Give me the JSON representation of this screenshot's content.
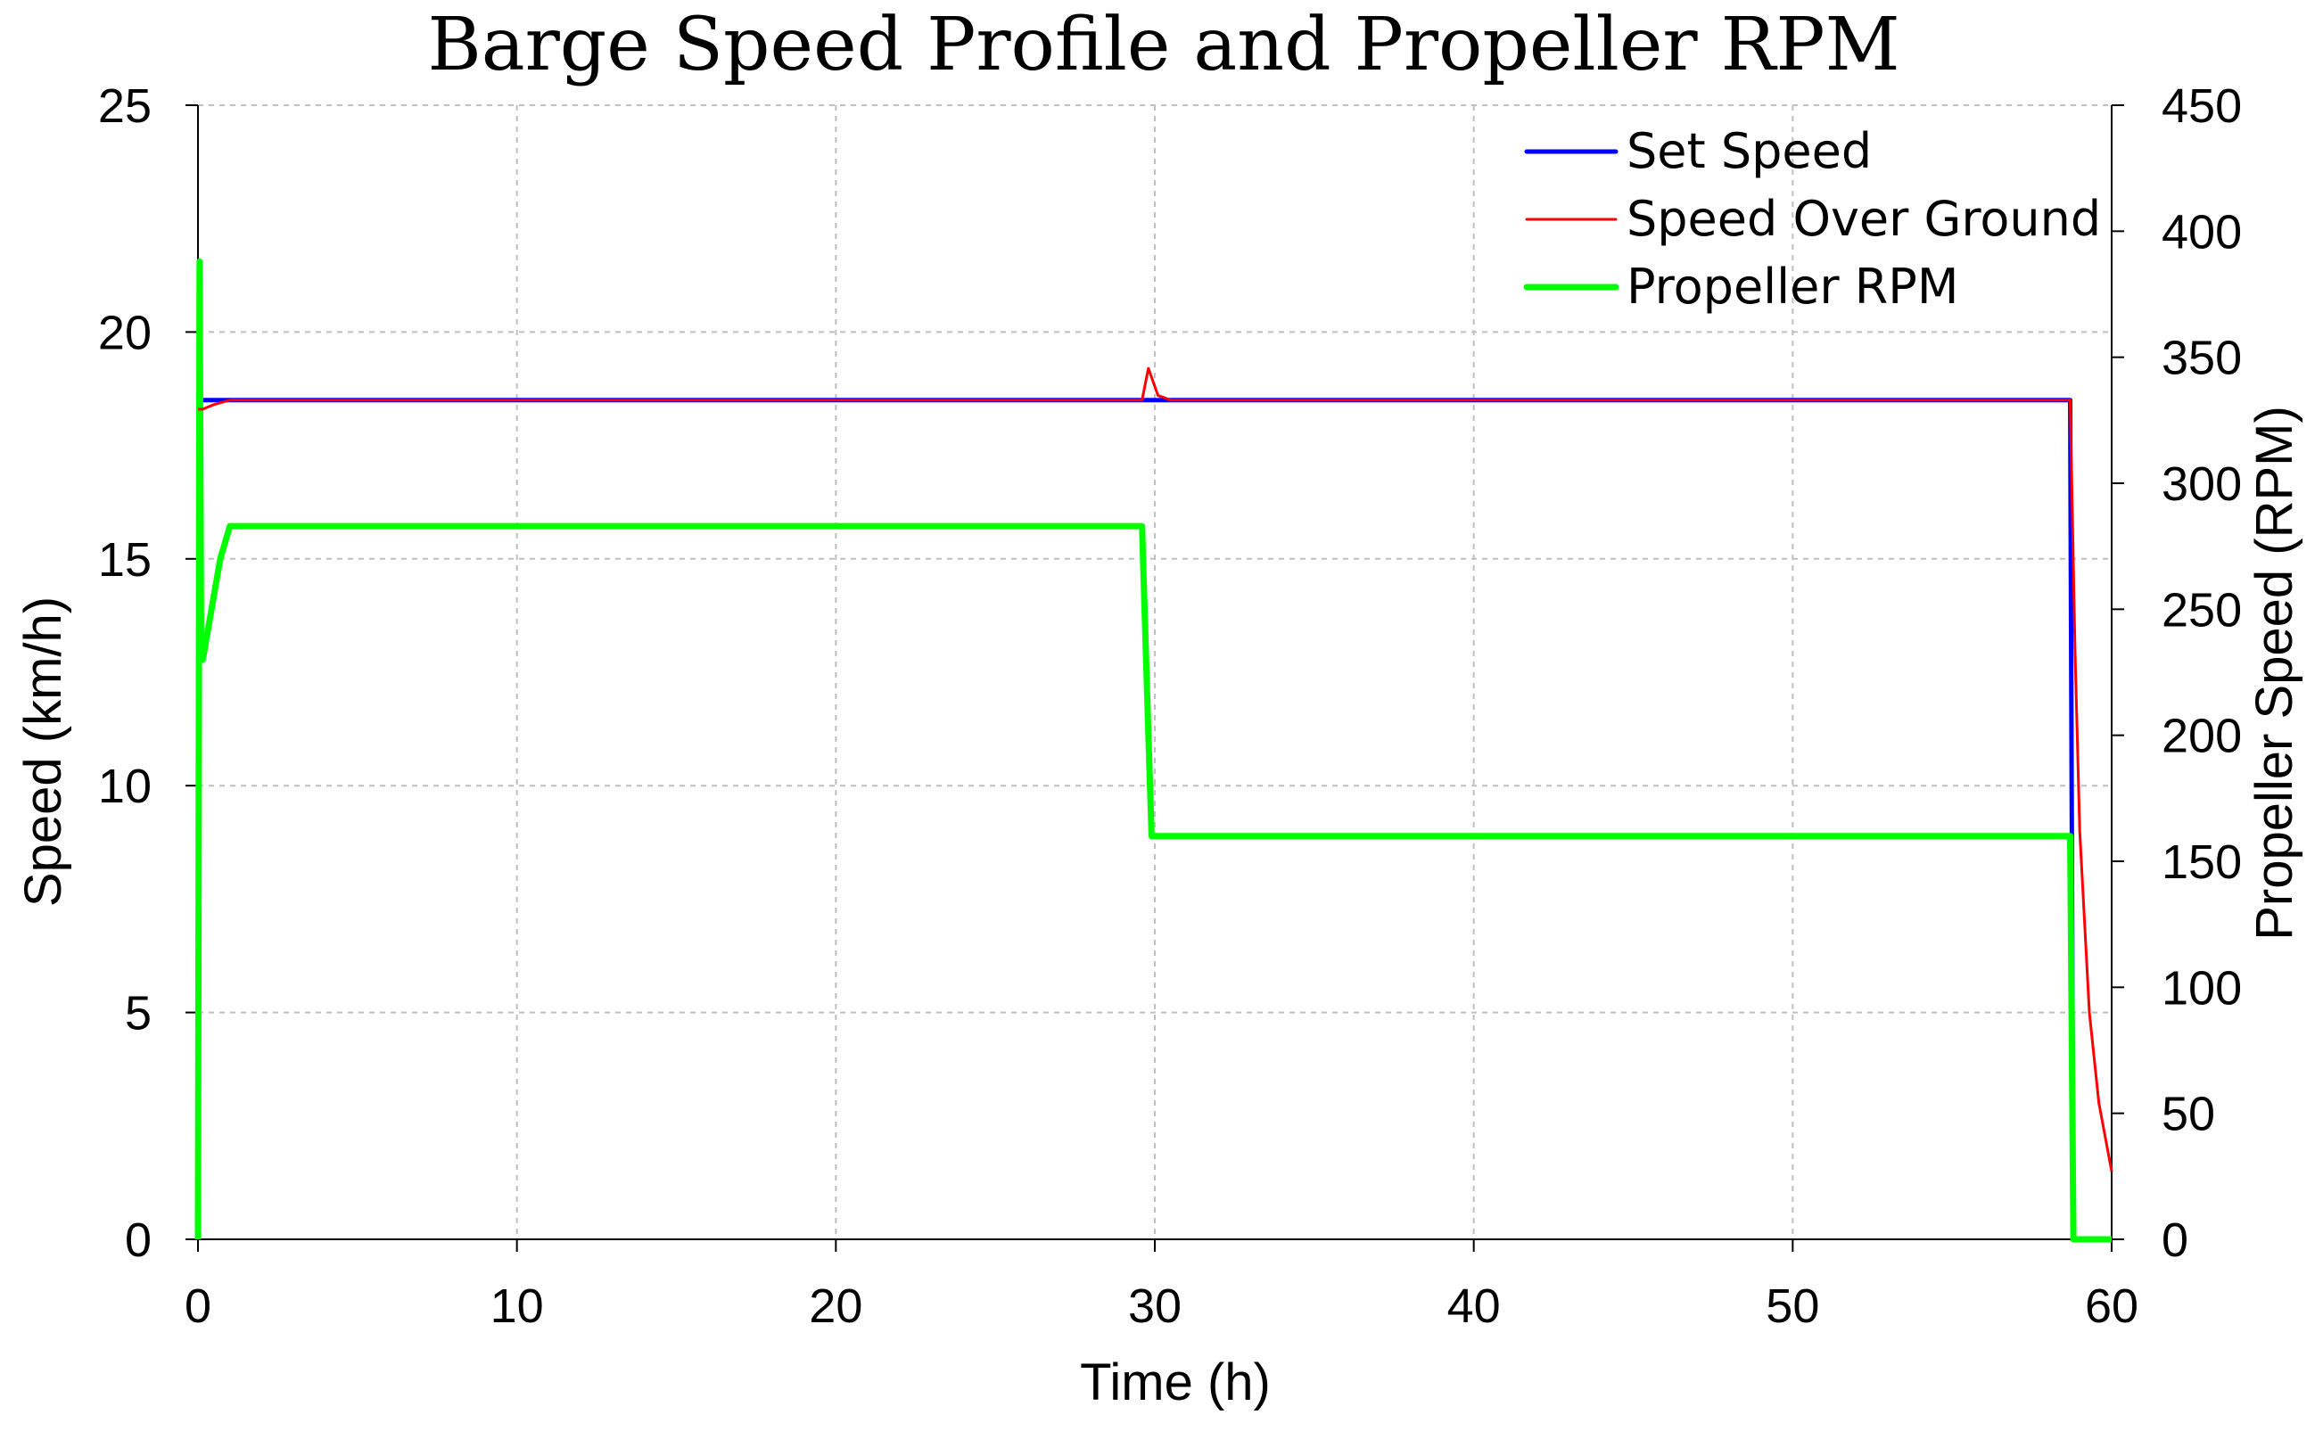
{
  "chart_data": {
    "type": "line",
    "title": "Barge Speed Profile and Propeller RPM",
    "xlabel": "Time (h)",
    "ylabel": "Speed (km/h)",
    "y2label": "Propeller Speed (RPM)",
    "xlim": [
      0,
      60
    ],
    "ylim": [
      0,
      25
    ],
    "y2lim": [
      0,
      450
    ],
    "xticks": [
      0,
      10,
      20,
      30,
      40,
      50,
      60
    ],
    "yticks": [
      0,
      5,
      10,
      15,
      20,
      25
    ],
    "y2ticks": [
      0,
      50,
      100,
      150,
      200,
      250,
      300,
      350,
      400,
      450
    ],
    "grid": true,
    "legend_position": "top-right",
    "series": [
      {
        "name": "Set Speed",
        "axis": "left",
        "color": "#0000ff",
        "x": [
          0,
          0.05,
          58.7,
          58.8,
          60
        ],
        "y": [
          0,
          18.5,
          18.5,
          0,
          0
        ]
      },
      {
        "name": "Speed Over Ground",
        "axis": "left",
        "color": "#ff0000",
        "x": [
          0,
          0.15,
          0.5,
          1,
          29.6,
          29.8,
          30.1,
          30.5,
          35,
          58.7,
          58.85,
          59,
          59.3,
          59.6,
          60
        ],
        "y": [
          18.3,
          18.3,
          18.4,
          18.5,
          18.5,
          19.2,
          18.6,
          18.5,
          18.5,
          18.5,
          13,
          9,
          5,
          3,
          1.5
        ]
      },
      {
        "name": "Propeller RPM",
        "axis": "right",
        "color": "#00ff00",
        "x": [
          0,
          0.05,
          0.1,
          0.15,
          0.7,
          1,
          29.6,
          29.8,
          29.9,
          58.7,
          58.8,
          60
        ],
        "y": [
          0,
          388,
          230,
          230,
          270,
          283,
          283,
          200,
          160,
          160,
          0,
          0
        ]
      }
    ]
  }
}
